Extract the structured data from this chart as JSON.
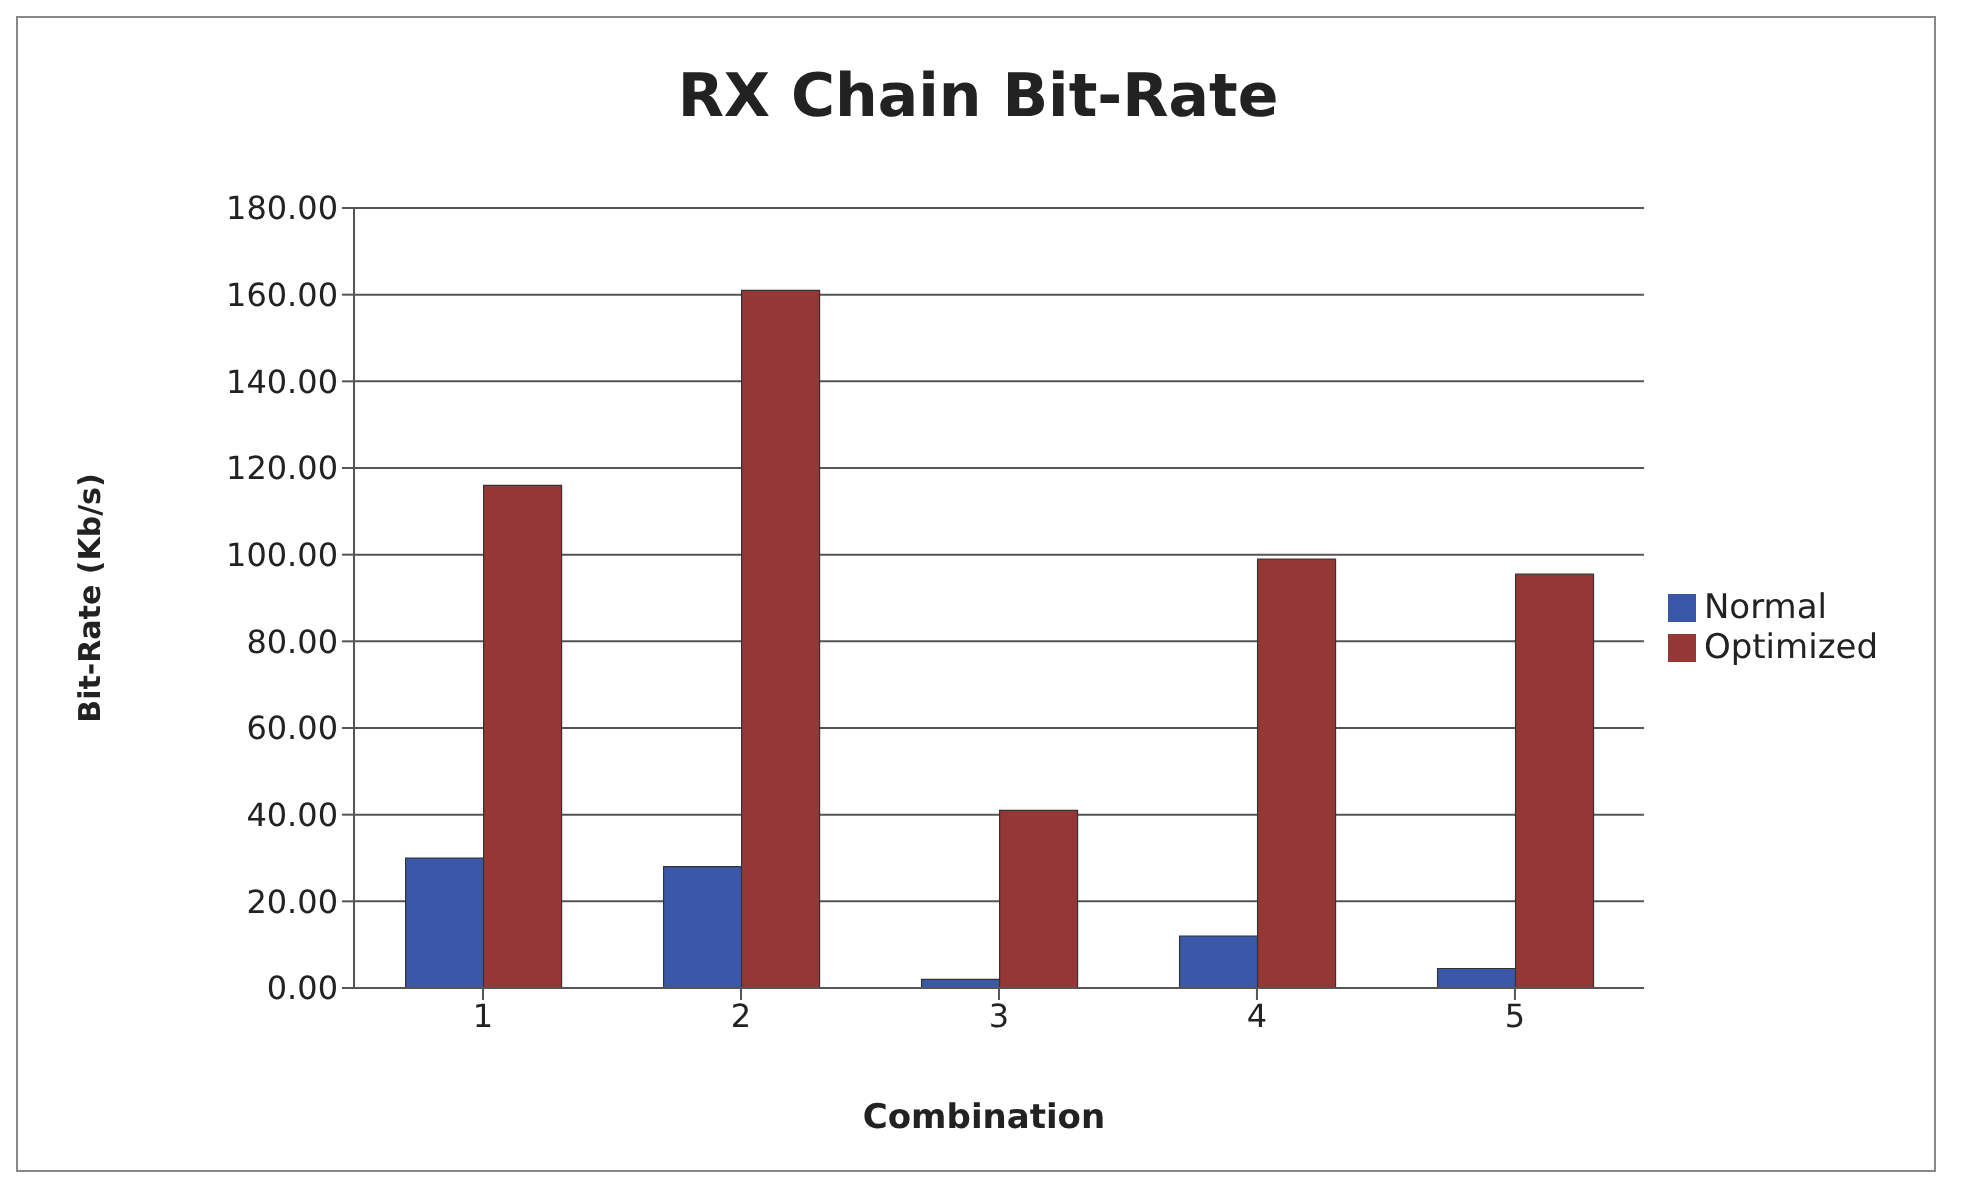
{
  "chart_data": {
    "type": "bar",
    "title": "RX Chain Bit-Rate",
    "xlabel": "Combination",
    "ylabel": "Bit-Rate (Kb/s)",
    "categories": [
      "1",
      "2",
      "3",
      "4",
      "5"
    ],
    "series": [
      {
        "name": "Normal",
        "color": "#3b57a8",
        "values": [
          30,
          28,
          2,
          12,
          4.5
        ]
      },
      {
        "name": "Optimized",
        "color": "#953735",
        "values": [
          116,
          161,
          41,
          99,
          95.5
        ]
      }
    ],
    "ylim": [
      0,
      180
    ],
    "yticks": [
      {
        "value": 0,
        "label": "0.00"
      },
      {
        "value": 20,
        "label": "20.00"
      },
      {
        "value": 40,
        "label": "40.00"
      },
      {
        "value": 60,
        "label": "60.00"
      },
      {
        "value": 80,
        "label": "80.00"
      },
      {
        "value": 100,
        "label": "100.00"
      },
      {
        "value": 120,
        "label": "120.00"
      },
      {
        "value": 140,
        "label": "140.00"
      },
      {
        "value": 160,
        "label": "160.00"
      },
      {
        "value": 180,
        "label": "180.00"
      }
    ],
    "grid": "y",
    "legend": "right"
  }
}
